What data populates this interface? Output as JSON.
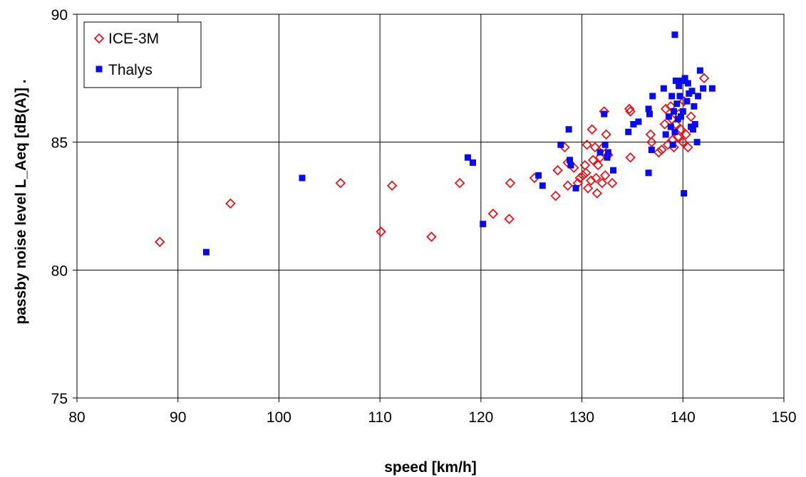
{
  "chart_data": {
    "type": "scatter",
    "xlabel": "speed [km/h]",
    "ylabel": "passby noise level L_Aeq [dB(A)]  .",
    "xlim": [
      80,
      150
    ],
    "ylim": [
      75,
      90
    ],
    "xticks": [
      "80",
      "90",
      "100",
      "110",
      "120",
      "130",
      "140",
      "150"
    ],
    "yticks": [
      "75",
      "80",
      "85",
      "90"
    ],
    "grid": true,
    "legend_position": "top-left",
    "series": [
      {
        "name": "ICE-3M",
        "marker": "open-diamond",
        "color": "#e8141c",
        "points": [
          [
            88.2,
            81.1
          ],
          [
            95.2,
            82.6
          ],
          [
            106.1,
            83.4
          ],
          [
            110.1,
            81.5
          ],
          [
            111.2,
            83.3
          ],
          [
            115.1,
            81.3
          ],
          [
            117.9,
            83.4
          ],
          [
            121.2,
            82.2
          ],
          [
            122.8,
            82.0
          ],
          [
            122.9,
            83.4
          ],
          [
            125.3,
            83.6
          ],
          [
            127.4,
            82.9
          ],
          [
            127.6,
            83.9
          ],
          [
            128.3,
            84.8
          ],
          [
            128.6,
            84.2
          ],
          [
            128.6,
            83.3
          ],
          [
            129.2,
            84.0
          ],
          [
            129.6,
            83.4
          ],
          [
            129.8,
            83.6
          ],
          [
            130.1,
            83.7
          ],
          [
            130.3,
            84.1
          ],
          [
            130.4,
            83.8
          ],
          [
            130.5,
            84.9
          ],
          [
            130.6,
            83.2
          ],
          [
            130.9,
            83.5
          ],
          [
            131.0,
            85.5
          ],
          [
            131.1,
            84.3
          ],
          [
            131.3,
            84.8
          ],
          [
            131.4,
            83.6
          ],
          [
            131.5,
            83.0
          ],
          [
            131.6,
            84.1
          ],
          [
            131.8,
            84.4
          ],
          [
            132.0,
            83.4
          ],
          [
            132.1,
            84.8
          ],
          [
            132.2,
            86.2
          ],
          [
            132.3,
            83.7
          ],
          [
            132.4,
            85.3
          ],
          [
            132.6,
            84.5
          ],
          [
            133.0,
            83.4
          ],
          [
            134.7,
            86.3
          ],
          [
            134.8,
            86.2
          ],
          [
            134.8,
            84.4
          ],
          [
            136.8,
            85.3
          ],
          [
            136.9,
            85.0
          ],
          [
            137.6,
            84.6
          ],
          [
            137.9,
            84.7
          ],
          [
            138.2,
            85.7
          ],
          [
            138.3,
            86.3
          ],
          [
            138.5,
            84.9
          ],
          [
            138.8,
            86.4
          ],
          [
            138.9,
            85.9
          ],
          [
            139.0,
            85.1
          ],
          [
            139.1,
            84.8
          ],
          [
            139.3,
            85.7
          ],
          [
            139.5,
            85.2
          ],
          [
            139.6,
            86.1
          ],
          [
            139.8,
            85.5
          ],
          [
            140.0,
            85.0
          ],
          [
            140.1,
            86.6
          ],
          [
            140.3,
            85.3
          ],
          [
            140.5,
            84.8
          ],
          [
            140.8,
            86.0
          ],
          [
            142.1,
            87.5
          ]
        ]
      },
      {
        "name": "Thalys",
        "marker": "filled-square",
        "color": "#0a0aef",
        "points": [
          [
            92.8,
            80.7
          ],
          [
            102.3,
            83.6
          ],
          [
            118.7,
            84.4
          ],
          [
            119.2,
            84.2
          ],
          [
            120.2,
            81.8
          ],
          [
            125.7,
            83.7
          ],
          [
            126.1,
            83.3
          ],
          [
            127.9,
            84.9
          ],
          [
            128.7,
            85.5
          ],
          [
            128.8,
            84.3
          ],
          [
            128.9,
            84.1
          ],
          [
            129.4,
            83.2
          ],
          [
            131.8,
            84.6
          ],
          [
            132.2,
            86.1
          ],
          [
            132.3,
            84.9
          ],
          [
            132.5,
            84.4
          ],
          [
            132.6,
            84.6
          ],
          [
            133.1,
            83.9
          ],
          [
            134.6,
            85.4
          ],
          [
            135.1,
            85.7
          ],
          [
            135.6,
            85.8
          ],
          [
            136.6,
            86.3
          ],
          [
            136.6,
            83.8
          ],
          [
            136.7,
            86.1
          ],
          [
            136.9,
            84.7
          ],
          [
            137.0,
            86.8
          ],
          [
            138.1,
            87.1
          ],
          [
            138.3,
            85.3
          ],
          [
            138.6,
            86.0
          ],
          [
            138.8,
            85.6
          ],
          [
            138.9,
            86.8
          ],
          [
            139.0,
            84.9
          ],
          [
            139.1,
            86.2
          ],
          [
            139.2,
            85.4
          ],
          [
            139.2,
            89.2
          ],
          [
            139.3,
            87.4
          ],
          [
            139.4,
            86.5
          ],
          [
            139.5,
            85.9
          ],
          [
            139.6,
            87.2
          ],
          [
            139.7,
            86.8
          ],
          [
            139.8,
            86.0
          ],
          [
            139.9,
            87.4
          ],
          [
            140.0,
            86.2
          ],
          [
            140.1,
            83.0
          ],
          [
            140.2,
            87.5
          ],
          [
            140.4,
            86.6
          ],
          [
            140.5,
            87.3
          ],
          [
            140.6,
            86.9
          ],
          [
            140.8,
            85.6
          ],
          [
            140.9,
            87.0
          ],
          [
            141.0,
            85.5
          ],
          [
            141.1,
            86.4
          ],
          [
            141.2,
            85.7
          ],
          [
            141.4,
            85.0
          ],
          [
            141.5,
            86.8
          ],
          [
            141.7,
            87.8
          ],
          [
            142.0,
            87.1
          ],
          [
            142.9,
            87.1
          ]
        ]
      }
    ]
  }
}
